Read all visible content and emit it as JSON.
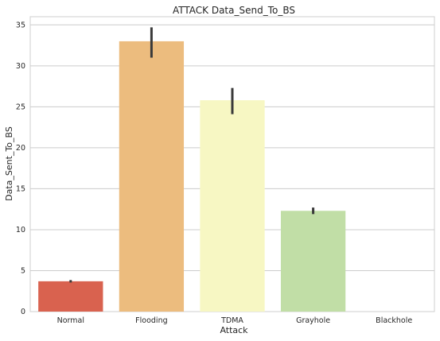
{
  "chart_data": {
    "type": "bar",
    "title": "ATTACK Data_Send_To_BS",
    "xlabel": "Attack",
    "ylabel": "Data_Sent_To_BS",
    "categories": [
      "Normal",
      "Flooding",
      "TDMA",
      "Grayhole",
      "Blackhole"
    ],
    "values": [
      3.7,
      33.0,
      25.8,
      12.3,
      0.0
    ],
    "error_low": [
      3.55,
      31.0,
      24.1,
      11.9,
      0.0
    ],
    "error_high": [
      3.85,
      34.7,
      27.3,
      12.7,
      0.0
    ],
    "colors": [
      "#d9624f",
      "#ecbc7e",
      "#f7f7c3",
      "#c1dea6",
      "#8fc4a6"
    ],
    "ylim": [
      0,
      36
    ],
    "yticks": [
      0,
      5,
      10,
      15,
      20,
      25,
      30,
      35
    ],
    "grid": true,
    "legend": "none"
  }
}
